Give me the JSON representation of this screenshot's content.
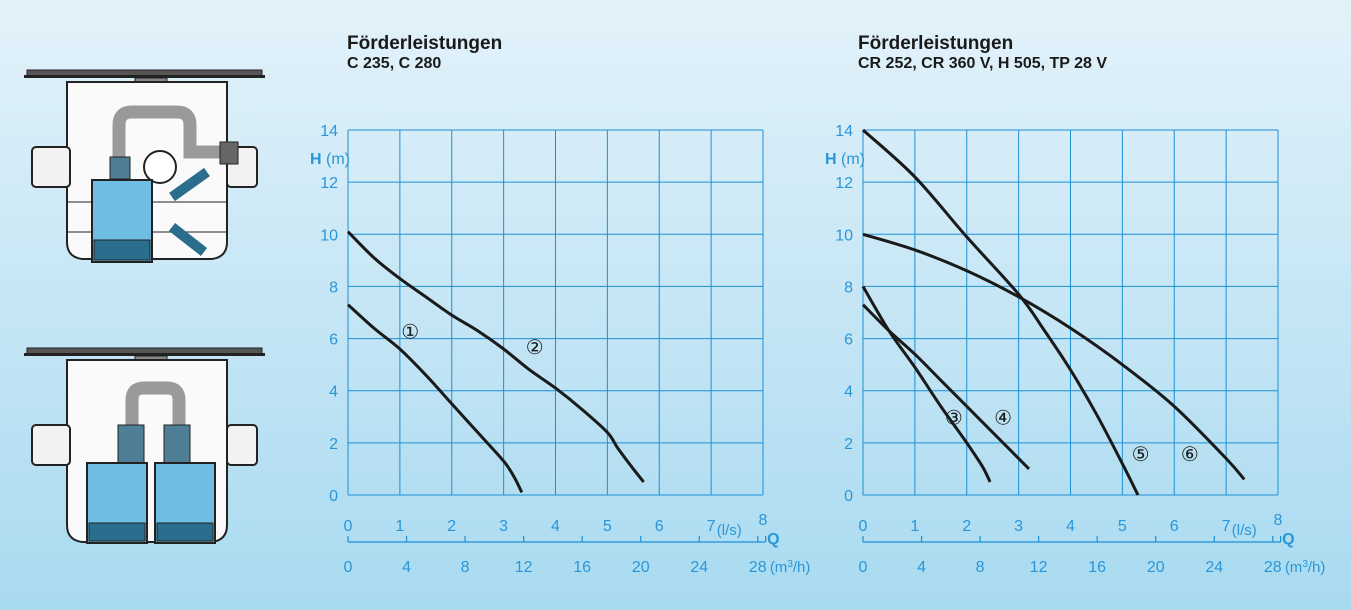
{
  "colors": {
    "background_top": "#e3f2fa",
    "background_bottom": "#a8daf0",
    "grid": "#1e90d6",
    "axis_text": "#2a96d8",
    "curve": "#1a1a1a",
    "pump_blue": "#6fbde3"
  },
  "illustrations": {
    "top": {
      "icon": "single-pump-lifting-station"
    },
    "bottom": {
      "icon": "double-pump-lifting-station"
    }
  },
  "chart_data": [
    {
      "type": "line",
      "title": "Förderleistungen",
      "subtitle": "C 235, C 280",
      "ylabel_symbol": "H",
      "ylabel_unit": "(m)",
      "ylim": [
        0,
        14
      ],
      "yticks": [
        "0",
        "2",
        "4",
        "6",
        "8",
        "10",
        "12",
        "14"
      ],
      "xlim": [
        0,
        8
      ],
      "xticks": [
        "0",
        "1",
        "2",
        "3",
        "4",
        "5",
        "6",
        "7",
        "8"
      ],
      "xunit": "(l/s)",
      "x2label_symbol": "Q",
      "x2ticks": [
        "0",
        "4",
        "8",
        "12",
        "16",
        "20",
        "24",
        "28"
      ],
      "x2unit_base": "(m",
      "x2unit_sup": "3",
      "x2unit_tail": "/h)",
      "grid": true,
      "series": [
        {
          "name": "①",
          "x": [
            0,
            0.5,
            1,
            1.5,
            2,
            2.5,
            3,
            3.2,
            3.35
          ],
          "y": [
            7.3,
            6.4,
            5.6,
            4.6,
            3.5,
            2.4,
            1.3,
            0.7,
            0.1
          ]
        },
        {
          "name": "②",
          "x": [
            0,
            0.5,
            1,
            1.5,
            2,
            2.5,
            3,
            3.5,
            4,
            4.5,
            5,
            5.2,
            5.5,
            5.7
          ],
          "y": [
            10.1,
            9.1,
            8.3,
            7.6,
            6.9,
            6.3,
            5.6,
            4.8,
            4.1,
            3.3,
            2.4,
            1.8,
            1.0,
            0.5
          ]
        }
      ],
      "series_labels": [
        {
          "text": "①",
          "x": 1.2,
          "y": 6.0
        },
        {
          "text": "②",
          "x": 3.6,
          "y": 5.4
        }
      ]
    },
    {
      "type": "line",
      "title": "Förderleistungen",
      "subtitle": "CR 252, CR 360 V, H 505, TP 28 V",
      "ylabel_symbol": "H",
      "ylabel_unit": "(m)",
      "ylim": [
        0,
        14
      ],
      "yticks": [
        "0",
        "2",
        "4",
        "6",
        "8",
        "10",
        "12",
        "14"
      ],
      "xlim": [
        0,
        8
      ],
      "xticks": [
        "0",
        "1",
        "2",
        "3",
        "4",
        "5",
        "6",
        "7",
        "8"
      ],
      "xunit": "(l/s)",
      "x2label_symbol": "Q",
      "x2ticks": [
        "0",
        "4",
        "8",
        "12",
        "16",
        "20",
        "24",
        "28"
      ],
      "x2unit_base": "(m",
      "x2unit_sup": "3",
      "x2unit_tail": "/h)",
      "grid": true,
      "series": [
        {
          "name": "③",
          "x": [
            0,
            0.5,
            1,
            1.5,
            2,
            2.3,
            2.45
          ],
          "y": [
            8.0,
            6.3,
            4.9,
            3.4,
            2.0,
            1.1,
            0.5
          ]
        },
        {
          "name": "④",
          "x": [
            0,
            0.5,
            1,
            1.5,
            2,
            2.5,
            3.2
          ],
          "y": [
            7.3,
            6.3,
            5.4,
            4.4,
            3.4,
            2.4,
            1.0
          ]
        },
        {
          "name": "⑤",
          "x": [
            0,
            1,
            2,
            3,
            3.5,
            4,
            4.5,
            5,
            5.3
          ],
          "y": [
            14,
            12.2,
            9.9,
            7.7,
            6.3,
            4.8,
            3.1,
            1.2,
            0.0
          ]
        },
        {
          "name": "⑥",
          "x": [
            0,
            1,
            2,
            3,
            4,
            5,
            6,
            7,
            7.35
          ],
          "y": [
            10.0,
            9.4,
            8.6,
            7.6,
            6.4,
            5.0,
            3.4,
            1.4,
            0.6
          ]
        }
      ],
      "series_labels": [
        {
          "text": "③",
          "x": 1.75,
          "y": 2.7
        },
        {
          "text": "④",
          "x": 2.7,
          "y": 2.7
        },
        {
          "text": "⑤",
          "x": 5.35,
          "y": 1.3
        },
        {
          "text": "⑥",
          "x": 6.3,
          "y": 1.3
        }
      ]
    }
  ]
}
